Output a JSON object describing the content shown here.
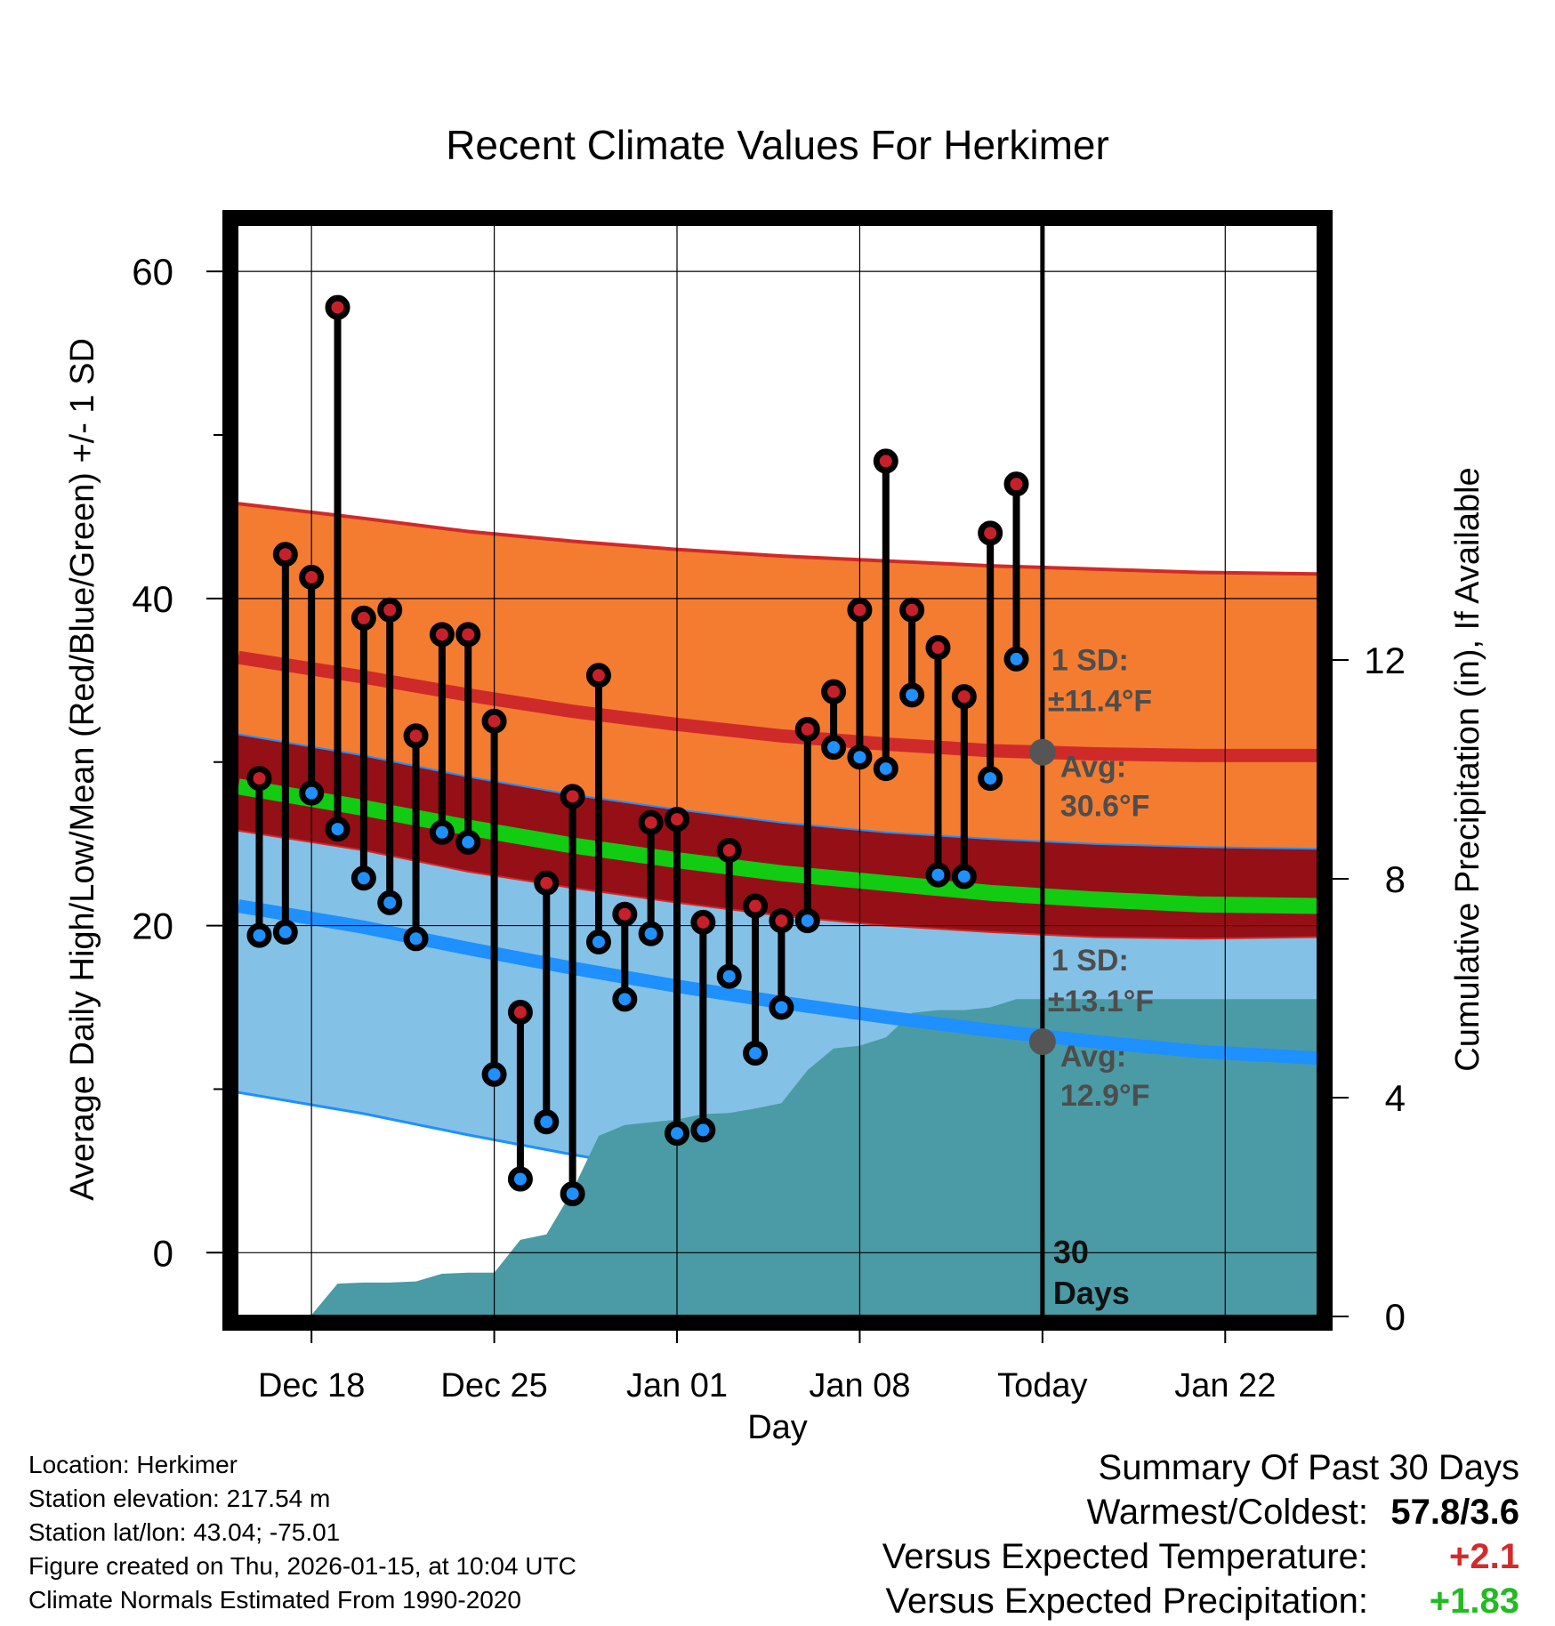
{
  "chart_data": {
    "type": "line",
    "title": "Recent Climate Values For Herkimer",
    "xlabel": "Day",
    "ylabel_left": "Average Daily High/Low/Mean (Red/Blue/Green) +/- 1 SD",
    "ylabel_right": "Cumulative Precipitation (in), If Available",
    "xlim": [
      -0.8,
      40.5
    ],
    "ylim_left": [
      -3.9,
      63
    ],
    "ylim_right": [
      0,
      20
    ],
    "x_ticks": [
      {
        "x": 2,
        "label": "Dec 18"
      },
      {
        "x": 9,
        "label": "Dec 25"
      },
      {
        "x": 16,
        "label": "Jan 01"
      },
      {
        "x": 23,
        "label": "Jan 08"
      },
      {
        "x": 30,
        "label": "Today"
      },
      {
        "x": 37,
        "label": "Jan 22"
      }
    ],
    "y_left_ticks": [
      0,
      20,
      40,
      60
    ],
    "y_left_minor_ticks": [
      10,
      30,
      50
    ],
    "y_right_ticks": [
      0,
      4,
      8,
      12
    ],
    "today_x": 30,
    "normals": {
      "x": [
        -0.8,
        4,
        8,
        12,
        16,
        20,
        24,
        28,
        32,
        36,
        40.5
      ],
      "high_avg": [
        36.4,
        35.2,
        34.1,
        33.1,
        32.3,
        31.6,
        31.1,
        30.7,
        30.5,
        30.4,
        30.4
      ],
      "high_upper": [
        45.8,
        44.9,
        44.1,
        43.5,
        43.0,
        42.6,
        42.3,
        42.0,
        41.8,
        41.6,
        41.5
      ],
      "high_lower": [
        31.7,
        30.4,
        29.1,
        28.0,
        27.1,
        26.3,
        25.7,
        25.3,
        25.0,
        24.8,
        24.7
      ],
      "mean": [
        28.5,
        27.2,
        26.0,
        24.9,
        24.0,
        23.2,
        22.6,
        22.0,
        21.6,
        21.3,
        21.2
      ],
      "low_upper": [
        25.8,
        24.6,
        23.3,
        22.3,
        21.4,
        20.6,
        20.0,
        19.6,
        19.3,
        19.2,
        19.3
      ],
      "low_avg": [
        21.2,
        19.9,
        18.6,
        17.4,
        16.3,
        15.3,
        14.4,
        13.6,
        12.9,
        12.3,
        11.9
      ],
      "low_lower": [
        9.8,
        8.5,
        7.2,
        6.0,
        4.9,
        3.9,
        3.0,
        2.2,
        1.6,
        1.1,
        0.8
      ]
    },
    "series": [
      {
        "name": "Daily High",
        "color": "#c8202a",
        "x": [
          0,
          1,
          2,
          3,
          4,
          5,
          6,
          7,
          8,
          9,
          10,
          11,
          12,
          13,
          14,
          15,
          16,
          17,
          18,
          19,
          20,
          21,
          22,
          23,
          24,
          25,
          26,
          27,
          28,
          29
        ],
        "values": [
          29.0,
          42.7,
          41.3,
          57.8,
          38.8,
          39.3,
          31.6,
          37.8,
          37.8,
          32.5,
          14.7,
          22.6,
          27.9,
          35.3,
          20.7,
          26.3,
          26.5,
          20.2,
          24.6,
          21.2,
          20.3,
          32.0,
          34.3,
          39.3,
          48.4,
          39.3,
          37.0,
          34.0,
          44.0,
          47.0
        ]
      },
      {
        "name": "Daily Low",
        "color": "#1e90ff",
        "x": [
          0,
          1,
          2,
          3,
          4,
          5,
          6,
          7,
          8,
          9,
          10,
          11,
          12,
          13,
          14,
          15,
          16,
          17,
          18,
          19,
          20,
          21,
          22,
          23,
          24,
          25,
          26,
          27,
          28,
          29
        ],
        "values": [
          19.4,
          19.6,
          28.1,
          25.9,
          22.9,
          21.4,
          19.2,
          25.7,
          25.1,
          10.9,
          4.5,
          8.0,
          3.6,
          19.0,
          15.5,
          19.5,
          7.3,
          7.5,
          16.9,
          12.2,
          15.0,
          20.3,
          30.9,
          30.3,
          29.6,
          34.1,
          23.1,
          23.0,
          29.0,
          36.3
        ]
      },
      {
        "name": "Cumulative Precipitation",
        "color": "#4a9ba5",
        "x": [
          2,
          3,
          4,
          5,
          6,
          7,
          8,
          9,
          10,
          11,
          12,
          13,
          14,
          15,
          16,
          17,
          18,
          19,
          20,
          21,
          22,
          23,
          24,
          25,
          26,
          27,
          28,
          29,
          40.5
        ],
        "values": [
          0.03,
          0.6,
          0.62,
          0.62,
          0.64,
          0.78,
          0.8,
          0.8,
          1.4,
          1.5,
          2.3,
          3.3,
          3.5,
          3.55,
          3.6,
          3.7,
          3.72,
          3.8,
          3.9,
          4.5,
          4.9,
          4.95,
          5.1,
          5.55,
          5.6,
          5.6,
          5.65,
          5.8,
          5.8
        ]
      }
    ],
    "annotations": {
      "high_sd_line1": "1 SD:",
      "high_sd_line2": "±11.4°F",
      "high_avg_line1": "Avg:",
      "high_avg_line2": "30.6°F",
      "low_sd_line1": "1 SD:",
      "low_sd_line2": "±13.1°F",
      "low_avg_line1": "Avg:",
      "low_avg_line2": "12.9°F",
      "days_line1": "30",
      "days_line2": "Days"
    },
    "colors": {
      "high_band": "#f47c30",
      "overlap_band": "#950f16",
      "low_band": "#84c1e7",
      "mean_line": "#11cc11",
      "high_line": "#cf2a2a",
      "low_line": "#1e90ff",
      "precip": "#4a9ba5",
      "annotation": "#4d4d4d"
    }
  },
  "info": {
    "location": "Location: Herkimer",
    "elevation": "Station elevation: 217.54 m",
    "latlon": "Station lat/lon: 43.04; -75.01",
    "created": "Figure created on Thu, 2026-01-15, at 10:04 UTC",
    "normals": "Climate Normals Estimated From 1990-2020"
  },
  "summary": {
    "header": "Summary Of Past 30 Days",
    "warmest_label": "Warmest/Coldest:",
    "warmest_value": "57.8/3.6",
    "temp_label": "Versus Expected Temperature:",
    "temp_value": "+2.1",
    "temp_color": "#d42a2a",
    "precip_label": "Versus Expected Precipitation:",
    "precip_value": "+1.83",
    "precip_color": "#22bb22"
  }
}
